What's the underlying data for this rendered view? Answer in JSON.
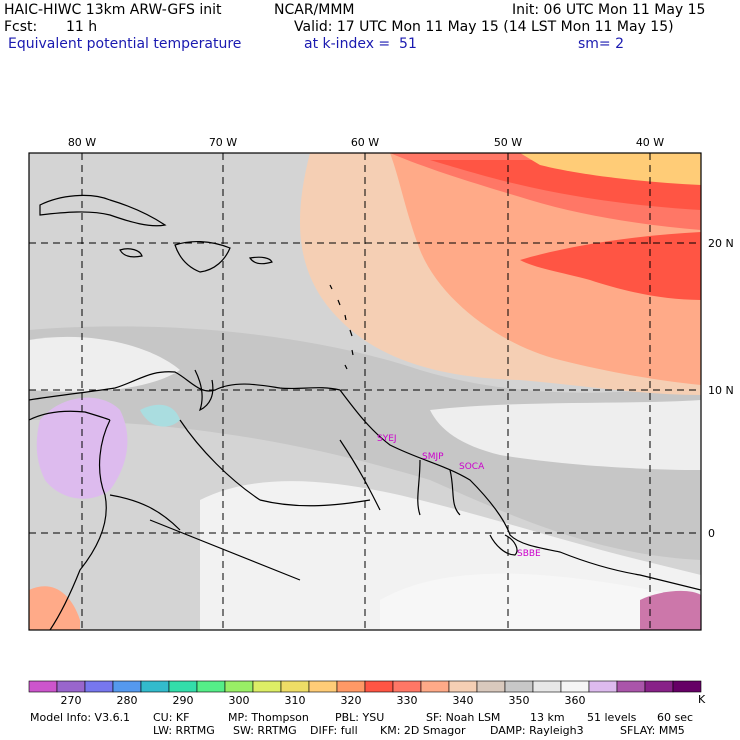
{
  "header": {
    "model_title": "HAIC-HIWC 13km ARW-GFS init",
    "org": "NCAR/MMM",
    "init": "Init: 06 UTC Mon 11 May 15",
    "fcst_label": "Fcst:",
    "fcst_value": "11 h",
    "valid": "Valid: 17 UTC Mon 11 May 15 (14 LST Mon 11 May 15)",
    "field": "Equivalent potential temperature",
    "level": "at k-index =  51",
    "smoothing": "sm= 2"
  },
  "map": {
    "lon_labels": [
      "80 W",
      "70 W",
      "60 W",
      "50 W",
      "40 W"
    ],
    "lat_labels": [
      "20 N",
      "10 N",
      "0"
    ],
    "stations": [
      "SYEJ",
      "SMJP",
      "SOCA",
      "SBBE"
    ]
  },
  "colorbar": {
    "colors": [
      "#cc55cc",
      "#9966cc",
      "#7777ee",
      "#5599ee",
      "#33bbcc",
      "#33ddaa",
      "#55ee88",
      "#99ee66",
      "#ddee66",
      "#eedd66",
      "#ffcc77",
      "#ff9966",
      "#ff5544",
      "#ff7766",
      "#ffaa88",
      "#f5cfb4",
      "#d9c9bd",
      "#c8c8c8",
      "#e8e8e8",
      "#f5f5f5",
      "#ddbbee",
      "#aa55aa",
      "#882288",
      "#660066"
    ],
    "tick_labels": [
      "270",
      "280",
      "290",
      "300",
      "310",
      "320",
      "330",
      "340",
      "350",
      "360"
    ],
    "unit": "K"
  },
  "footer": {
    "line1": [
      "Model Info: V3.6.1",
      "CU: KF",
      "MP: Thompson",
      "PBL: YSU",
      "SF: Noah LSM",
      "13 km",
      "51 levels",
      "60 sec"
    ],
    "line2": [
      "LW: RRTMG",
      "SW: RRTMG",
      "DIFF: full",
      "KM: 2D Smagor",
      "DAMP: Rayleigh3",
      "SFLAY: MM5"
    ]
  }
}
